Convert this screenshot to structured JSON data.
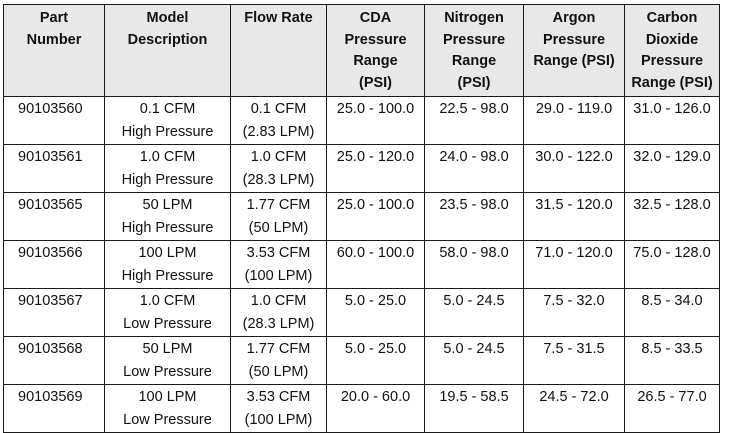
{
  "table": {
    "headers": [
      [
        "Part",
        "Number"
      ],
      [
        "Model",
        "Description"
      ],
      [
        "Flow Rate"
      ],
      [
        "CDA",
        "Pressure",
        "Range",
        "(PSI)"
      ],
      [
        "Nitrogen",
        "Pressure",
        "Range",
        "(PSI)"
      ],
      [
        "Argon",
        "Pressure",
        "Range (PSI)"
      ],
      [
        "Carbon",
        "Dioxide",
        "Pressure",
        "Range (PSI)"
      ]
    ],
    "rows": [
      {
        "part": "90103560",
        "model": [
          "0.1 CFM",
          "High Pressure"
        ],
        "flow": [
          "0.1 CFM",
          "(2.83 LPM)"
        ],
        "cda": "25.0 - 100.0",
        "nitrogen": "22.5 - 98.0",
        "argon": "29.0 - 119.0",
        "co2": "31.0 - 126.0"
      },
      {
        "part": "90103561",
        "model": [
          "1.0 CFM",
          "High Pressure"
        ],
        "flow": [
          "1.0 CFM",
          "(28.3 LPM)"
        ],
        "cda": "25.0 - 120.0",
        "nitrogen": "24.0 - 98.0",
        "argon": "30.0 - 122.0",
        "co2": "32.0 - 129.0"
      },
      {
        "part": "90103565",
        "model": [
          "50 LPM",
          "High Pressure"
        ],
        "flow": [
          "1.77 CFM",
          "(50 LPM)"
        ],
        "cda": "25.0 - 100.0",
        "nitrogen": "23.5 - 98.0",
        "argon": "31.5 - 120.0",
        "co2": "32.5 - 128.0"
      },
      {
        "part": "90103566",
        "model": [
          "100 LPM",
          "High Pressure"
        ],
        "flow": [
          "3.53 CFM",
          "(100 LPM)"
        ],
        "cda": "60.0 - 100.0",
        "nitrogen": "58.0 - 98.0",
        "argon": "71.0 - 120.0",
        "co2": "75.0 - 128.0"
      },
      {
        "part": "90103567",
        "model": [
          "1.0 CFM",
          "Low Pressure"
        ],
        "flow": [
          "1.0 CFM",
          "(28.3 LPM)"
        ],
        "cda": "5.0 - 25.0",
        "nitrogen": "5.0 - 24.5",
        "argon": "7.5 - 32.0",
        "co2": "8.5 - 34.0"
      },
      {
        "part": "90103568",
        "model": [
          "50 LPM",
          "Low Pressure"
        ],
        "flow": [
          "1.77 CFM",
          "(50 LPM)"
        ],
        "cda": "5.0 - 25.0",
        "nitrogen": "5.0 - 24.5",
        "argon": "7.5 - 31.5",
        "co2": "8.5 - 33.5"
      },
      {
        "part": "90103569",
        "model": [
          "100 LPM",
          "Low Pressure"
        ],
        "flow": [
          "3.53 CFM",
          "(100 LPM)"
        ],
        "cda": "20.0 - 60.0",
        "nitrogen": "19.5 - 58.5",
        "argon": "24.5 - 72.0",
        "co2": "26.5 - 77.0"
      }
    ]
  }
}
